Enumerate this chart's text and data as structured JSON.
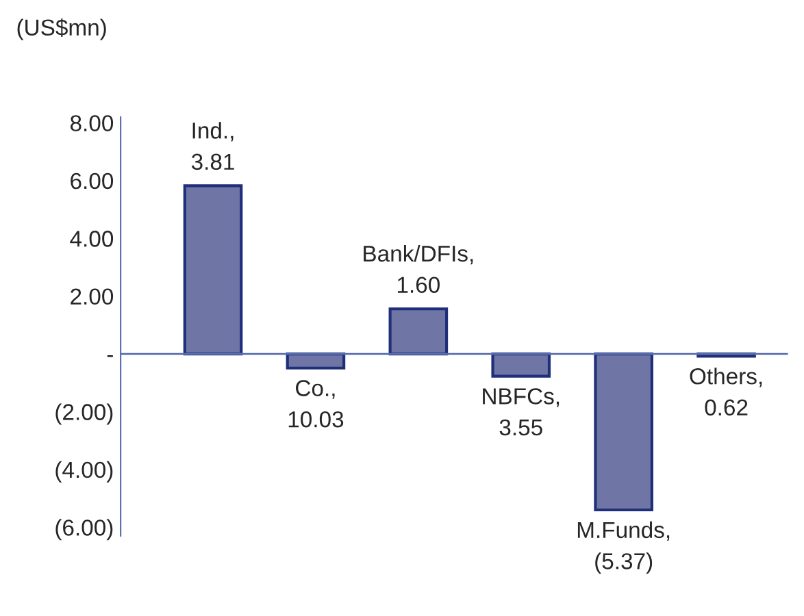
{
  "chart_data": {
    "type": "bar",
    "ylabel": "(US$mn)",
    "categories": [
      "Ind., 3.81",
      "Co., 10.03",
      "Bank/DFIs, 1.60",
      "NBFCs, 3.55",
      "M.Funds, (5.37)",
      "Others, 0.62"
    ],
    "values": [
      5.82,
      -0.49,
      1.56,
      -0.77,
      -5.4,
      -0.08
    ],
    "color": "#6f76a6",
    "ylim": [
      -6.3,
      8.2
    ],
    "yticks": [
      {
        "value": 8,
        "label": "8.00"
      },
      {
        "value": 6,
        "label": "6.00"
      },
      {
        "value": 4,
        "label": "4.00"
      },
      {
        "value": 2,
        "label": "2.00"
      },
      {
        "value": 0,
        "label": "-"
      },
      {
        "value": -2,
        "label": "(2.00)"
      },
      {
        "value": -4,
        "label": "(4.00)"
      },
      {
        "value": -6,
        "label": "(6.00)"
      }
    ],
    "ref_lines": [
      {
        "axis": "y",
        "value": 0,
        "color": "#5a6fb0"
      }
    ],
    "tick_labels": "y",
    "grid": false
  }
}
